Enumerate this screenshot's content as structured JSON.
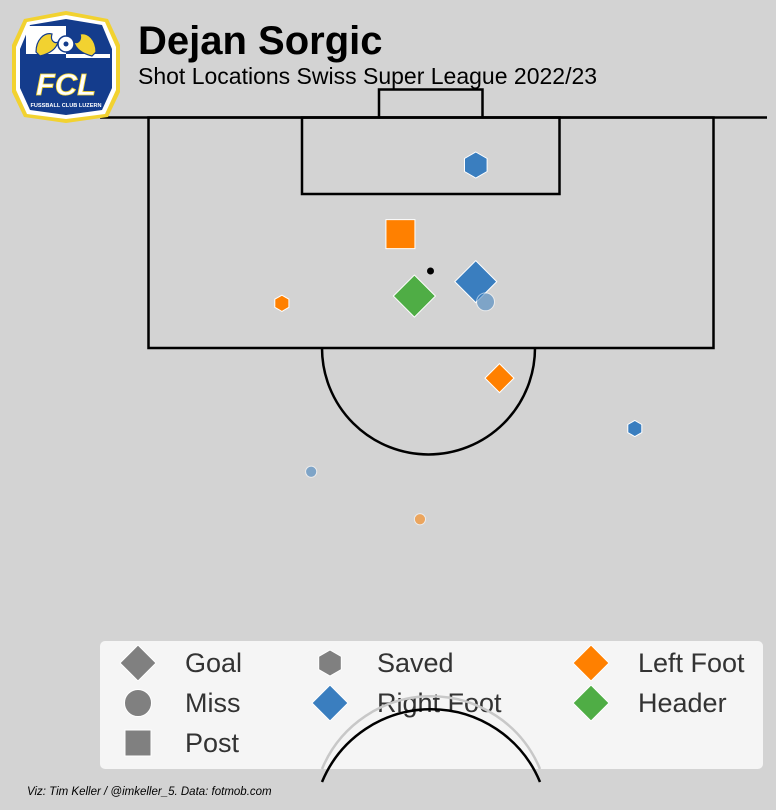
{
  "header": {
    "title": "Dejan Sorgic",
    "subtitle": "Shot Locations Swiss Super League 2022/23"
  },
  "logo": {
    "text": "FCL",
    "subtext": "FUSSBALL CLUB LUZERN",
    "colors": {
      "blue": "#143c8c",
      "gold": "#f2d230",
      "white": "#ffffff"
    }
  },
  "credit": "Viz: Tim Keller / @imkeller_5. Data: fotmob.com",
  "colors": {
    "background": "#d3d3d3",
    "right_foot": "#3a7ebf",
    "left_foot": "#ff8000",
    "header": "#4fad45",
    "legend_gray": "#808080"
  },
  "legend": {
    "items": [
      {
        "label": "Goal",
        "shape": "diamond",
        "color": "#808080"
      },
      {
        "label": "Miss",
        "shape": "circle",
        "color": "#808080"
      },
      {
        "label": "Post",
        "shape": "square",
        "color": "#808080"
      },
      {
        "label": "Saved",
        "shape": "hexagon",
        "color": "#808080"
      },
      {
        "label": "Right Foot",
        "shape": "diamond",
        "color": "#3a7ebf"
      },
      {
        "label": "Left Foot",
        "shape": "diamond",
        "color": "#ff8000"
      },
      {
        "label": "Header",
        "shape": "diamond",
        "color": "#4fad45"
      }
    ]
  },
  "chart_data": {
    "type": "scatter",
    "title": "Dejan Sorgic",
    "subtitle": "Shot Locations Swiss Super League 2022/23",
    "pitch": "half-pitch, vertical, attacking upward",
    "units": "metres from goal line (distance) and from left touchline (width), pitch 105 x 68",
    "series": [
      {
        "name": "Goal",
        "marker": "diamond"
      },
      {
        "name": "Miss",
        "marker": "circle"
      },
      {
        "name": "Post",
        "marker": "square"
      },
      {
        "name": "Saved",
        "marker": "hexagon"
      }
    ],
    "shots": [
      {
        "outcome": "Saved",
        "body_part": "Right Foot",
        "width": 37.3,
        "distance": 3.3,
        "size": "medium"
      },
      {
        "outcome": "Post",
        "body_part": "Left Foot",
        "width": 31.9,
        "distance": 8.1,
        "size": "medium"
      },
      {
        "outcome": "Goal",
        "body_part": "Right Foot",
        "width": 37.3,
        "distance": 11.4,
        "size": "large"
      },
      {
        "outcome": "Miss",
        "body_part": "Right Foot",
        "width": 38.0,
        "distance": 12.8,
        "size": "medium"
      },
      {
        "outcome": "Goal",
        "body_part": "Header",
        "width": 32.9,
        "distance": 12.4,
        "size": "large"
      },
      {
        "outcome": "Saved",
        "body_part": "Left Foot",
        "width": 23.4,
        "distance": 12.9,
        "size": "small"
      },
      {
        "outcome": "Goal",
        "body_part": "Left Foot",
        "width": 39.0,
        "distance": 18.1,
        "size": "medium"
      },
      {
        "outcome": "Saved",
        "body_part": "Right Foot",
        "width": 48.7,
        "distance": 21.6,
        "size": "small"
      },
      {
        "outcome": "Miss",
        "body_part": "Right Foot",
        "width": 25.5,
        "distance": 24.6,
        "size": "small"
      },
      {
        "outcome": "Miss",
        "body_part": "Left Foot",
        "width": 33.3,
        "distance": 27.9,
        "size": "small"
      }
    ]
  }
}
